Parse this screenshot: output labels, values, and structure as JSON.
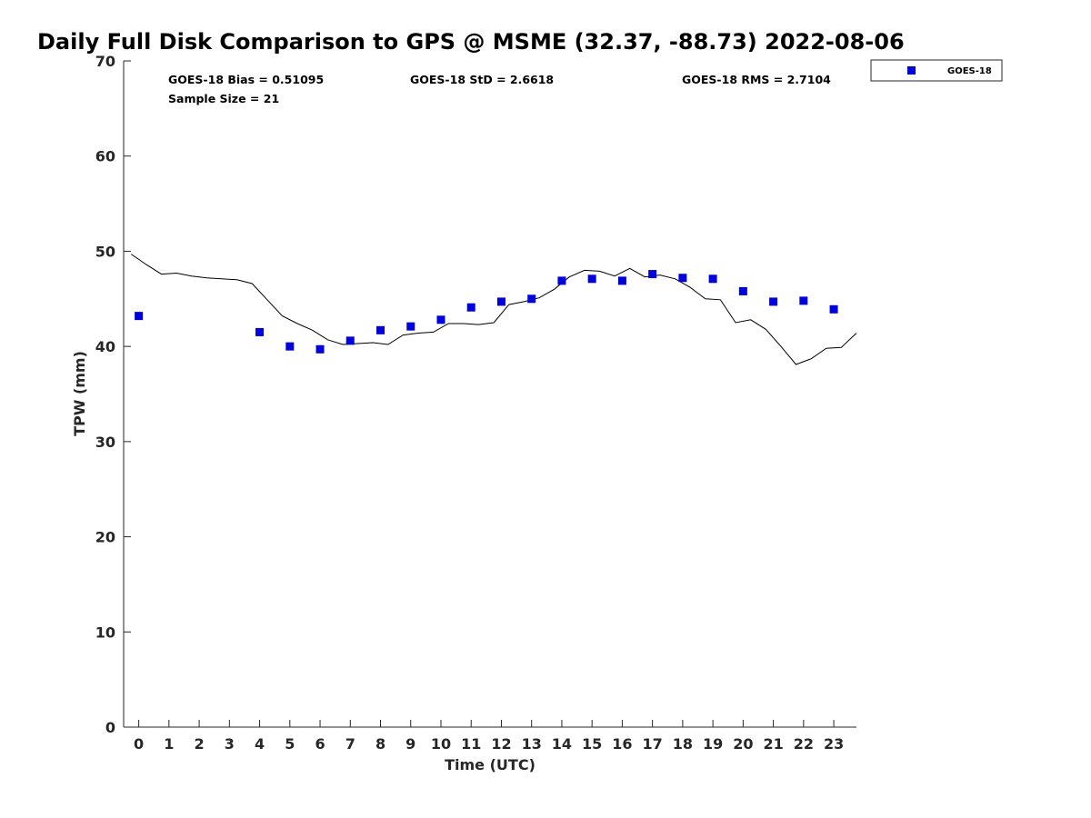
{
  "chart_data": {
    "type": "scatter",
    "title": "Daily Full Disk Comparison to GPS @ MSME (32.37, -88.73) 2022-08-06",
    "xlabel": "Time (UTC)",
    "ylabel": "TPW (mm)",
    "xlim": [
      -0.5,
      23.75
    ],
    "ylim": [
      0,
      70
    ],
    "x_ticks": [
      0,
      1,
      2,
      3,
      4,
      5,
      6,
      7,
      8,
      9,
      10,
      11,
      12,
      13,
      14,
      15,
      16,
      17,
      18,
      19,
      20,
      21,
      22,
      23
    ],
    "y_ticks": [
      0,
      10,
      20,
      30,
      40,
      50,
      60,
      70
    ],
    "grid": false,
    "legend_position": "outside-top-right",
    "stats": {
      "bias": "GOES-18 Bias = 0.51095",
      "std": "GOES-18 StD = 2.6618",
      "rms": "GOES-18 RMS = 2.7104",
      "sample_size": "Sample Size = 21"
    },
    "series": [
      {
        "name": "GOES-18",
        "marker": "square",
        "color": "#0000dd",
        "x": [
          0,
          4,
          5,
          6,
          7,
          8,
          9,
          10,
          11,
          12,
          13,
          14,
          15,
          16,
          17,
          18,
          19,
          20,
          21,
          22,
          23
        ],
        "y": [
          43.2,
          41.5,
          40.0,
          39.7,
          40.6,
          41.7,
          42.1,
          42.8,
          44.1,
          44.7,
          45.0,
          46.9,
          47.1,
          46.9,
          47.6,
          47.2,
          47.1,
          45.8,
          44.7,
          44.8,
          43.9
        ]
      },
      {
        "name": "",
        "marker": "line",
        "color": "#000000",
        "x": [
          -0.25,
          0.25,
          0.75,
          1.25,
          1.75,
          2.25,
          2.75,
          3.25,
          3.75,
          4.25,
          4.75,
          5.25,
          5.75,
          6.25,
          6.75,
          7.25,
          7.75,
          8.25,
          8.75,
          9.25,
          9.75,
          10.25,
          10.75,
          11.25,
          11.75,
          12.25,
          12.75,
          13.25,
          13.75,
          14.25,
          14.75,
          15.25,
          15.75,
          16.25,
          16.75,
          17.25,
          17.75,
          18.25,
          18.75,
          19.25,
          19.75,
          20.25,
          20.75,
          21.25,
          21.75,
          22.25,
          22.75,
          23.25,
          23.75
        ],
        "y": [
          49.7,
          48.6,
          47.6,
          47.7,
          47.4,
          47.2,
          47.1,
          47.0,
          46.6,
          44.9,
          43.2,
          42.4,
          41.7,
          40.7,
          40.2,
          40.3,
          40.4,
          40.2,
          41.2,
          41.4,
          41.5,
          42.4,
          42.4,
          42.3,
          42.5,
          44.4,
          44.7,
          45.1,
          46.0,
          47.3,
          48.0,
          47.9,
          47.4,
          48.2,
          47.3,
          47.5,
          47.1,
          46.2,
          45.0,
          44.9,
          42.5,
          42.8,
          41.8,
          40.0,
          38.1,
          38.7,
          39.8,
          39.9,
          41.4
        ]
      }
    ]
  }
}
